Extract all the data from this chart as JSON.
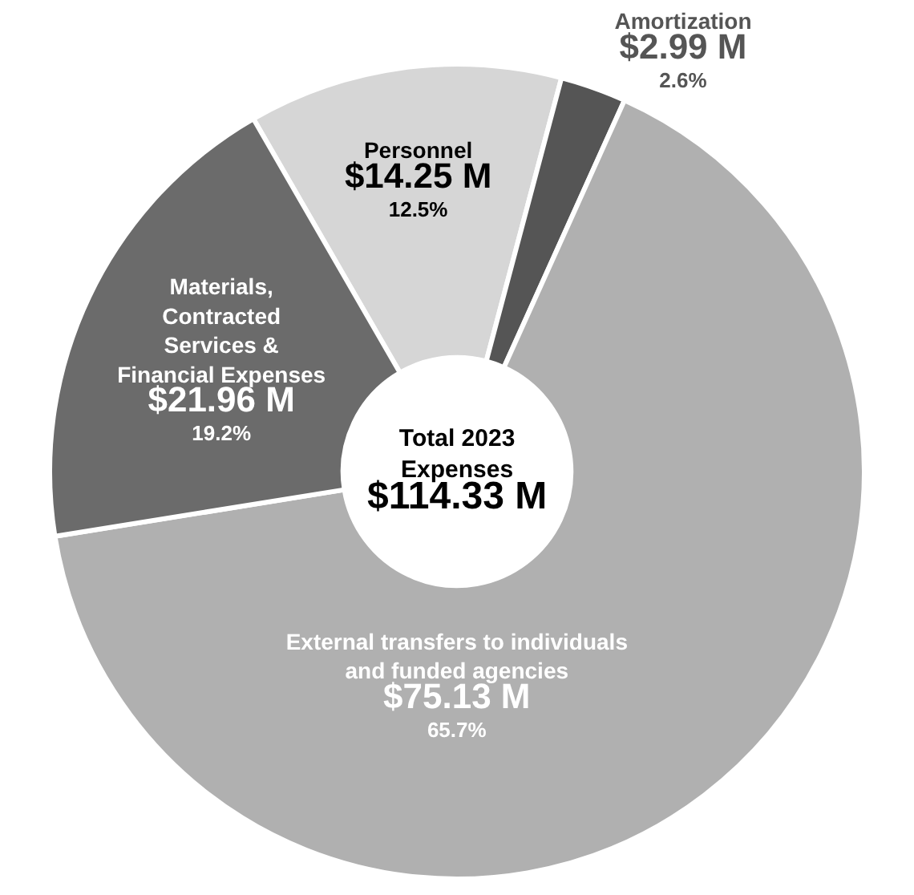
{
  "chart_data": {
    "type": "donut",
    "title": "Total 2023\nExpenses\n$114.33 M",
    "categories": [
      "Personnel",
      "Amortization",
      "External transfers to individuals\nand funded agencies",
      "Materials,\nContracted\nServices &\nFinancial Expenses"
    ],
    "values": [
      14.25,
      2.99,
      75.13,
      21.96
    ],
    "value_labels": [
      "$14.25 M\n12.5%",
      "$2.99 M\n2.6%",
      "$75.13 M\n65.7%",
      "$21.96 M\n19.2%"
    ],
    "colors": [
      "#d6d6d6",
      "#555555",
      "#b0b0b0",
      "#6b6b6b"
    ],
    "legend": false
  }
}
